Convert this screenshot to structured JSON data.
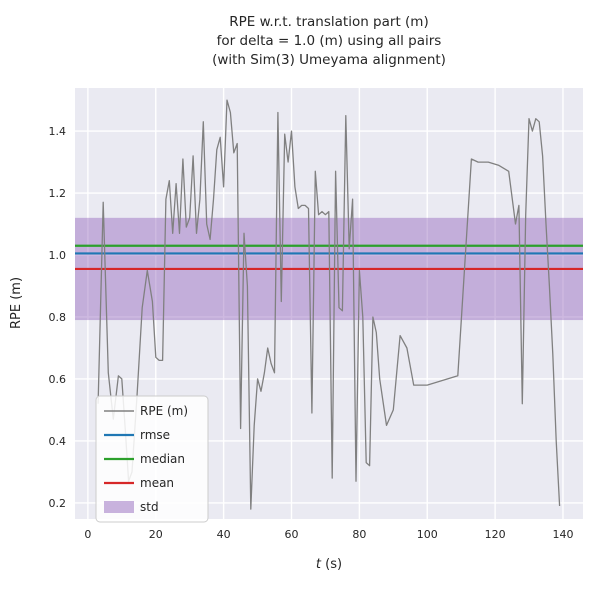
{
  "figure": {
    "background": "#ffffff",
    "axes_background": "#eaeaf2",
    "grid_color": "#ffffff",
    "text_color": "#262626"
  },
  "chart_data": {
    "type": "line",
    "title_lines": [
      "RPE w.r.t. translation part (m)",
      "for delta = 1.0 (m) using all pairs",
      "(with Sim(3) Umeyama alignment)"
    ],
    "xlabel_var": "t",
    "xlabel_unit": " (s)",
    "ylabel": "RPE (m)",
    "xlim": [
      -3.8,
      145.9
    ],
    "ylim": [
      0.148,
      1.539
    ],
    "xticks": [
      0,
      20,
      40,
      60,
      80,
      100,
      120,
      140
    ],
    "yticks": [
      0.2,
      0.4,
      0.6,
      0.8,
      1.0,
      1.2,
      1.4
    ],
    "grid": true,
    "colors": {
      "rpe": "#808080",
      "rmse": "#1f77b4",
      "median": "#2ca02c",
      "mean": "#d62728",
      "std_fill": "#9467bd",
      "std_opacity": 0.45
    },
    "stats": {
      "rmse": 1.005,
      "median": 1.03,
      "mean": 0.955,
      "std_low": 0.79,
      "std_high": 1.12
    },
    "legend": {
      "position": "lower left",
      "entries": [
        {
          "label": "RPE (m)",
          "type": "line",
          "color": "#808080",
          "width": 1.5
        },
        {
          "label": "rmse",
          "type": "line",
          "color": "#1f77b4",
          "width": 2.2
        },
        {
          "label": "median",
          "type": "line",
          "color": "#2ca02c",
          "width": 2.2
        },
        {
          "label": "mean",
          "type": "line",
          "color": "#d62728",
          "width": 2.2
        },
        {
          "label": "std",
          "type": "patch",
          "color": "#9467bd",
          "opacity": 0.5
        }
      ]
    },
    "series": [
      {
        "name": "RPE (m)",
        "x": [
          3,
          4.5,
          6,
          7.5,
          9,
          10,
          11,
          12,
          13,
          14.5,
          16,
          17.5,
          19,
          20,
          21,
          22,
          23,
          24,
          25,
          26,
          27,
          28,
          29,
          30,
          31,
          32,
          33,
          34,
          35,
          36,
          37,
          38,
          39,
          40,
          41,
          42,
          43,
          44,
          45,
          46,
          47,
          48,
          49,
          50,
          51,
          52,
          53,
          54,
          55,
          56,
          57,
          58,
          59,
          60,
          61,
          62,
          63,
          64,
          65,
          66,
          67,
          68,
          69,
          70,
          71,
          72,
          73,
          74,
          75,
          76,
          77,
          78,
          79,
          80,
          81,
          82,
          83,
          84,
          85,
          86,
          88,
          90,
          92,
          94,
          96,
          98,
          100,
          103,
          106,
          109,
          111,
          113,
          115,
          118,
          121,
          124,
          126,
          127,
          128,
          129,
          130,
          131,
          132,
          133,
          134,
          135,
          136,
          137,
          138,
          139
        ],
        "y": [
          0.52,
          1.17,
          0.62,
          0.47,
          0.61,
          0.6,
          0.44,
          0.27,
          0.3,
          0.55,
          0.83,
          0.95,
          0.85,
          0.67,
          0.66,
          0.66,
          1.18,
          1.24,
          1.07,
          1.23,
          1.07,
          1.31,
          1.09,
          1.12,
          1.32,
          1.07,
          1.18,
          1.43,
          1.1,
          1.05,
          1.18,
          1.34,
          1.38,
          1.22,
          1.5,
          1.46,
          1.33,
          1.36,
          0.44,
          1.07,
          0.9,
          0.18,
          0.45,
          0.6,
          0.56,
          0.62,
          0.7,
          0.65,
          0.62,
          1.46,
          0.85,
          1.39,
          1.3,
          1.4,
          1.22,
          1.15,
          1.16,
          1.16,
          1.15,
          0.49,
          1.27,
          1.13,
          1.14,
          1.13,
          1.14,
          0.28,
          1.27,
          0.83,
          0.82,
          1.45,
          1.02,
          1.18,
          0.27,
          0.95,
          0.8,
          0.33,
          0.32,
          0.8,
          0.75,
          0.6,
          0.45,
          0.5,
          0.74,
          0.7,
          0.58,
          0.58,
          0.58,
          0.59,
          0.6,
          0.61,
          0.96,
          1.31,
          1.3,
          1.3,
          1.29,
          1.27,
          1.1,
          1.16,
          0.52,
          1.13,
          1.44,
          1.4,
          1.44,
          1.43,
          1.32,
          1.1,
          0.9,
          0.68,
          0.4,
          0.19
        ]
      }
    ]
  }
}
